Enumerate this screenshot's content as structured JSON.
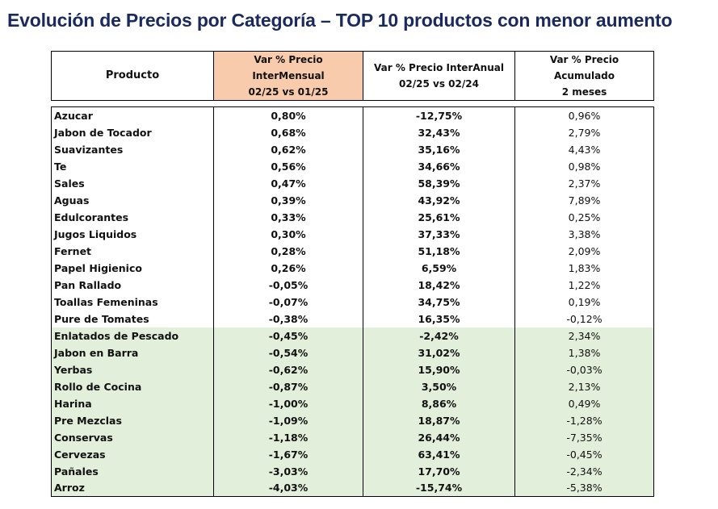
{
  "title": "Evolución de Precios por Categoría – TOP 10 productos con menor aumento",
  "table": {
    "headers": {
      "producto": "Producto",
      "mensual_l1": "Var % Precio InterMensual",
      "mensual_l2": "02/25 vs 01/25",
      "anual_l1": "Var % Precio InterAnual",
      "anual_l2": "02/25 vs 02/24",
      "acum_l1": "Var % Precio Acumulado",
      "acum_l2": "2 meses"
    },
    "highlight_colors": {
      "header_intermensual": "#f8cbad",
      "negative_rows": "#e2efda"
    },
    "rows": [
      {
        "producto": "Azucar",
        "mensual": "0,80%",
        "anual": "-12,75%",
        "acum": "0,96%",
        "highlight": false
      },
      {
        "producto": "Jabon de Tocador",
        "mensual": "0,68%",
        "anual": "32,43%",
        "acum": "2,79%",
        "highlight": false
      },
      {
        "producto": "Suavizantes",
        "mensual": "0,62%",
        "anual": "35,16%",
        "acum": "4,43%",
        "highlight": false
      },
      {
        "producto": "Te",
        "mensual": "0,56%",
        "anual": "34,66%",
        "acum": "0,98%",
        "highlight": false
      },
      {
        "producto": "Sales",
        "mensual": "0,47%",
        "anual": "58,39%",
        "acum": "2,37%",
        "highlight": false
      },
      {
        "producto": "Aguas",
        "mensual": "0,39%",
        "anual": "43,92%",
        "acum": "7,89%",
        "highlight": false
      },
      {
        "producto": "Edulcorantes",
        "mensual": "0,33%",
        "anual": "25,61%",
        "acum": "0,25%",
        "highlight": false
      },
      {
        "producto": "Jugos Liquidos",
        "mensual": "0,30%",
        "anual": "37,33%",
        "acum": "3,38%",
        "highlight": false
      },
      {
        "producto": "Fernet",
        "mensual": "0,28%",
        "anual": "51,18%",
        "acum": "2,09%",
        "highlight": false
      },
      {
        "producto": "Papel Higienico",
        "mensual": "0,26%",
        "anual": "6,59%",
        "acum": "1,83%",
        "highlight": false
      },
      {
        "producto": "Pan Rallado",
        "mensual": "-0,05%",
        "anual": "18,42%",
        "acum": "1,22%",
        "highlight": false
      },
      {
        "producto": "Toallas Femeninas",
        "mensual": "-0,07%",
        "anual": "34,75%",
        "acum": "0,19%",
        "highlight": false
      },
      {
        "producto": "Pure de Tomates",
        "mensual": "-0,38%",
        "anual": "16,35%",
        "acum": "-0,12%",
        "highlight": false
      },
      {
        "producto": "Enlatados de Pescado",
        "mensual": "-0,45%",
        "anual": "-2,42%",
        "acum": "2,34%",
        "highlight": true
      },
      {
        "producto": "Jabon en Barra",
        "mensual": "-0,54%",
        "anual": "31,02%",
        "acum": "1,38%",
        "highlight": true
      },
      {
        "producto": "Yerbas",
        "mensual": "-0,62%",
        "anual": "15,90%",
        "acum": "-0,03%",
        "highlight": true
      },
      {
        "producto": "Rollo de Cocina",
        "mensual": "-0,87%",
        "anual": "3,50%",
        "acum": "2,13%",
        "highlight": true
      },
      {
        "producto": "Harina",
        "mensual": "-1,00%",
        "anual": "8,86%",
        "acum": "0,49%",
        "highlight": true
      },
      {
        "producto": "Pre Mezclas",
        "mensual": "-1,09%",
        "anual": "18,87%",
        "acum": "-1,28%",
        "highlight": true
      },
      {
        "producto": "Conservas",
        "mensual": "-1,18%",
        "anual": "26,44%",
        "acum": "-7,35%",
        "highlight": true
      },
      {
        "producto": "Cervezas",
        "mensual": "-1,67%",
        "anual": "63,41%",
        "acum": "-0,45%",
        "highlight": true
      },
      {
        "producto": "Pañales",
        "mensual": "-3,03%",
        "anual": "17,70%",
        "acum": "-2,34%",
        "highlight": true
      },
      {
        "producto": "Arroz",
        "mensual": "-4,03%",
        "anual": "-15,74%",
        "acum": "-5,38%",
        "highlight": true
      }
    ]
  }
}
